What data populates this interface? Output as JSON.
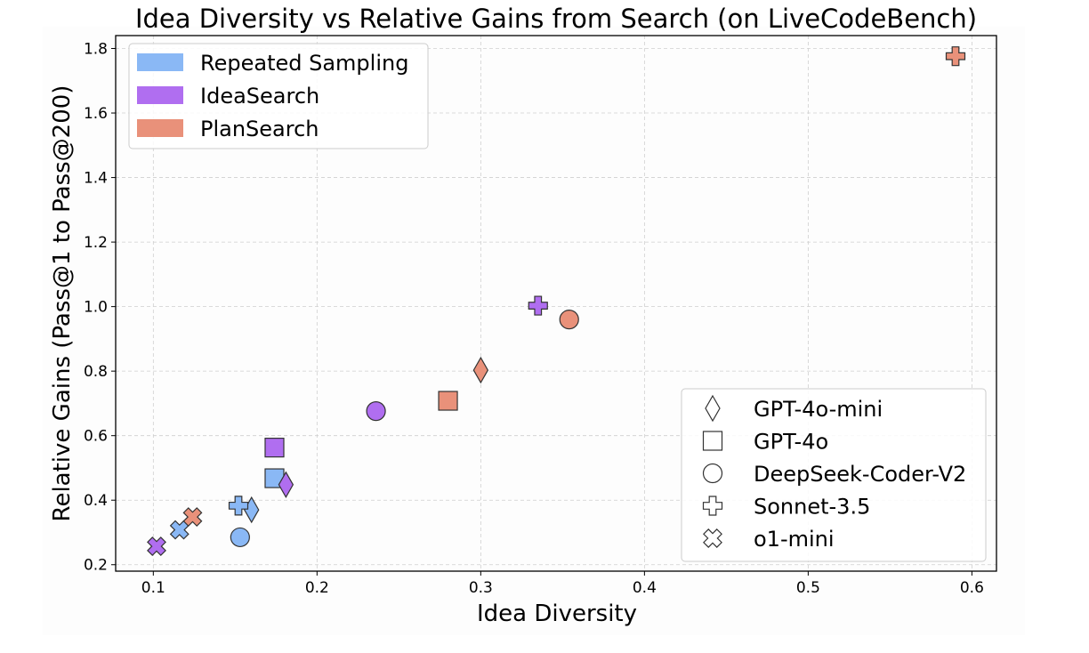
{
  "chart_data": {
    "type": "scatter",
    "title": "Idea Diversity vs Relative Gains from Search (on LiveCodeBench)",
    "xlabel": "Idea Diversity",
    "ylabel": "Relative Gains (Pass@1 to Pass@200)",
    "xlim": [
      0.077,
      0.615
    ],
    "ylim": [
      0.18,
      1.84
    ],
    "xticks": [
      0.1,
      0.2,
      0.3,
      0.4,
      0.5,
      0.6
    ],
    "xtick_labels": [
      "0.1",
      "0.2",
      "0.3",
      "0.4",
      "0.5",
      "0.6"
    ],
    "yticks": [
      0.2,
      0.4,
      0.6,
      0.8,
      1.0,
      1.2,
      1.4,
      1.6,
      1.8
    ],
    "ytick_labels": [
      "0.2",
      "0.4",
      "0.6",
      "0.8",
      "1.0",
      "1.2",
      "1.4",
      "1.6",
      "1.8"
    ],
    "grid": true,
    "method_legend_position": "top-left",
    "model_legend_position": "bottom-right",
    "methods": [
      {
        "name": "Repeated Sampling",
        "color": "#8ab8f5"
      },
      {
        "name": "IdeaSearch",
        "color": "#b06ef0"
      },
      {
        "name": "PlanSearch",
        "color": "#e9917a"
      }
    ],
    "models": [
      {
        "name": "GPT-4o-mini",
        "marker": "diamond"
      },
      {
        "name": "GPT-4o",
        "marker": "square"
      },
      {
        "name": "DeepSeek-Coder-V2",
        "marker": "circle"
      },
      {
        "name": "Sonnet-3.5",
        "marker": "plus"
      },
      {
        "name": "o1-mini",
        "marker": "x"
      }
    ],
    "points": [
      {
        "method": "Repeated Sampling",
        "model": "GPT-4o-mini",
        "x": 0.16,
        "y": 0.37
      },
      {
        "method": "Repeated Sampling",
        "model": "GPT-4o",
        "x": 0.174,
        "y": 0.468
      },
      {
        "method": "Repeated Sampling",
        "model": "DeepSeek-Coder-V2",
        "x": 0.153,
        "y": 0.285
      },
      {
        "method": "Repeated Sampling",
        "model": "Sonnet-3.5",
        "x": 0.152,
        "y": 0.383
      },
      {
        "method": "Repeated Sampling",
        "model": "o1-mini",
        "x": 0.116,
        "y": 0.308
      },
      {
        "method": "IdeaSearch",
        "model": "GPT-4o-mini",
        "x": 0.181,
        "y": 0.448
      },
      {
        "method": "IdeaSearch",
        "model": "GPT-4o",
        "x": 0.174,
        "y": 0.563
      },
      {
        "method": "IdeaSearch",
        "model": "DeepSeek-Coder-V2",
        "x": 0.236,
        "y": 0.676
      },
      {
        "method": "IdeaSearch",
        "model": "Sonnet-3.5",
        "x": 0.335,
        "y": 1.003
      },
      {
        "method": "IdeaSearch",
        "model": "o1-mini",
        "x": 0.102,
        "y": 0.257
      },
      {
        "method": "PlanSearch",
        "model": "GPT-4o-mini",
        "x": 0.3,
        "y": 0.803
      },
      {
        "method": "PlanSearch",
        "model": "GPT-4o",
        "x": 0.28,
        "y": 0.708
      },
      {
        "method": "PlanSearch",
        "model": "DeepSeek-Coder-V2",
        "x": 0.354,
        "y": 0.96
      },
      {
        "method": "PlanSearch",
        "model": "Sonnet-3.5",
        "x": 0.59,
        "y": 1.776
      },
      {
        "method": "PlanSearch",
        "model": "o1-mini",
        "x": 0.124,
        "y": 0.348
      }
    ]
  }
}
